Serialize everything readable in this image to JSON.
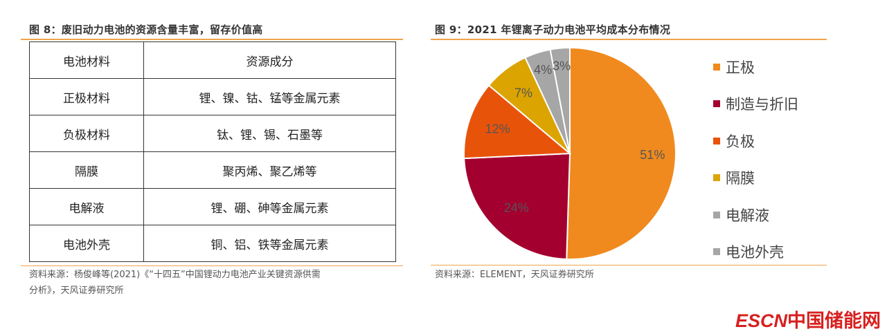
{
  "figure8": {
    "title": "图 8：废旧动力电池的资源含量丰富，留存价值高",
    "header": [
      "电池材料",
      "资源成分"
    ],
    "rows": [
      [
        "正极材料",
        "锂、镍、钴、锰等金属元素"
      ],
      [
        "负极材料",
        "钛、锂、锡、石墨等"
      ],
      [
        "隔膜",
        "聚丙烯、聚乙烯等"
      ],
      [
        "电解液",
        "锂、硼、砷等金属元素"
      ],
      [
        "电池外壳",
        "铜、铝、铁等金属元素"
      ]
    ],
    "source_line1": "资料来源：杨俊峰等(2021)《“十四五”中国锂动力电池产业关键资源供需",
    "source_line2": "分析》，天风证券研究所"
  },
  "figure9": {
    "title": "图 9：2021 年锂离子动力电池平均成本分布情况",
    "source": "资料来源：ELEMENT，天风证券研究所"
  },
  "chart_data": {
    "type": "pie",
    "title": "图 9：2021 年锂离子动力电池平均成本分布情况",
    "legend_position": "right",
    "slices": [
      {
        "name": "正极",
        "value": 51,
        "label": "51%",
        "color": "#f08a1e"
      },
      {
        "name": "制造与折旧",
        "value": 24,
        "label": "24%",
        "color": "#a3002f"
      },
      {
        "name": "负极",
        "value": 12,
        "label": "12%",
        "color": "#e8530a"
      },
      {
        "name": "隔膜",
        "value": 7,
        "label": "7%",
        "color": "#dba400"
      },
      {
        "name": "电解液",
        "value": 4,
        "label": "4%",
        "color": "#a6a6a6"
      },
      {
        "name": "电池外壳",
        "value": 3,
        "label": "3%",
        "color": "#a6a6a6"
      }
    ]
  },
  "logo": {
    "latin": "ESCN",
    "cn": "中国储能网"
  }
}
